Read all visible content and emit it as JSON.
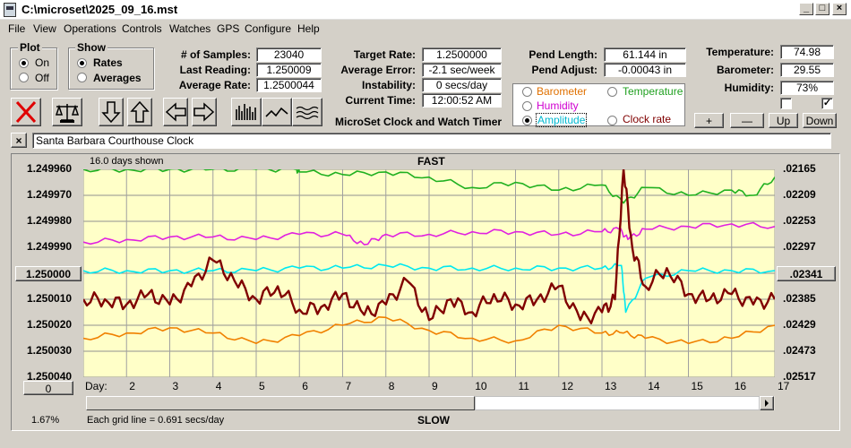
{
  "window": {
    "title": "C:\\microset\\2025_09_16.mst",
    "min_glyph": "_",
    "max_glyph": "□",
    "close_glyph": "×"
  },
  "menu": [
    "File",
    "View",
    "Operations",
    "Controls",
    "Watches",
    "GPS",
    "Configure",
    "Help"
  ],
  "plot_group": {
    "title": "Plot",
    "on": "On",
    "off": "Off",
    "selected": "On"
  },
  "show_group": {
    "title": "Show",
    "rates": "Rates",
    "averages": "Averages",
    "selected": "Rates"
  },
  "stats": {
    "samples_label": "# of Samples:",
    "samples": "23040",
    "last_label": "Last Reading:",
    "last": "1.250009",
    "avg_label": "Average Rate:",
    "avg": "1.2500044",
    "target_label": "Target Rate:",
    "target": "1.2500000",
    "error_label": "Average Error:",
    "error": "-2.1 sec/week",
    "instab_label": "Instability:",
    "instab": "0 secs/day",
    "time_label": "Current Time:",
    "time": "12:00:52 AM",
    "pendlen_label": "Pend Length:",
    "pendlen": "61.144 in",
    "pendadj_label": "Pend Adjust:",
    "pendadj": "-0.00043 in",
    "temp_label": "Temperature:",
    "temp": "74.98",
    "baro_label": "Barometer:",
    "baro": "29.55",
    "hum_label": "Humidity:",
    "hum": "73%"
  },
  "app_caption": "MicroSet Clock and Watch Timer",
  "channels": {
    "barometer": "Barometer",
    "temperature": "Temperature",
    "humidity": "Humidity",
    "amplitude": "Amplitude",
    "clock_rate": "Clock rate",
    "selected": "Amplitude"
  },
  "adjust_buttons": {
    "plus": "+",
    "minus": "—",
    "up": "Up",
    "down": "Down"
  },
  "checkboxes": {
    "left_checked": false,
    "right_checked": true,
    "check_glyph": "✓"
  },
  "clock_name": "Santa Barbara Courthouse Clock",
  "clear_glyph": "×",
  "chart": {
    "days_shown": "16.0 days shown",
    "fast": "FAST",
    "slow": "SLOW",
    "grid_note": "Each grid line = 0.691 secs/day",
    "percent": "1.67%",
    "day_prefix": "Day:",
    "center_left_btn": "1.250000",
    "center_right_btn": ".02341",
    "bottom_left_btn": "0"
  },
  "chart_data": {
    "type": "line",
    "x_label": "Day:",
    "x_ticks": [
      "2",
      "3",
      "4",
      "5",
      "6",
      "7",
      "8",
      "9",
      "10",
      "11",
      "12",
      "13",
      "14",
      "15",
      "16",
      "17"
    ],
    "xlim": [
      1,
      17
    ],
    "left_axis_ticks": [
      "1.249960",
      "1.249970",
      "1.249980",
      "1.249990",
      "1.250000",
      "1.250010",
      "1.250020",
      "1.250030",
      "1.250040"
    ],
    "right_axis_ticks": [
      ".02165",
      ".02209",
      ".02253",
      ".02297",
      ".02341",
      ".02385",
      ".02429",
      ".02473",
      ".02517"
    ],
    "left_ylim": [
      1.24996,
      1.25004
    ],
    "right_ylim": [
      0.02165,
      0.02517
    ],
    "grid": true,
    "background": "#ffffc8",
    "series": [
      {
        "name": "Temperature",
        "color": "#20b020",
        "x": [
          1,
          2,
          3,
          4,
          5,
          5.9,
          6,
          7,
          8,
          9,
          10,
          11,
          12,
          13,
          13.5,
          14,
          15,
          16,
          16.5,
          17
        ],
        "y": [
          1.24996,
          1.24996,
          1.24996,
          1.24996,
          1.24996,
          1.24996,
          1.249961,
          1.249962,
          1.249961,
          1.249963,
          1.249967,
          1.249965,
          1.249968,
          1.249966,
          1.249973,
          1.249967,
          1.24997,
          1.249968,
          1.24997,
          1.249963
        ]
      },
      {
        "name": "Humidity",
        "color": "#e020e0",
        "x": [
          1,
          2,
          3,
          4,
          5,
          6,
          7,
          7.5,
          8,
          9,
          10,
          11,
          12,
          13,
          13.4,
          13.6,
          14,
          15,
          16,
          17
        ],
        "y": [
          1.249988,
          1.249987,
          1.249986,
          1.249986,
          1.249987,
          1.249985,
          1.249985,
          1.249989,
          1.249985,
          1.249985,
          1.249984,
          1.249984,
          1.249985,
          1.249984,
          1.249983,
          1.249987,
          1.249983,
          1.249982,
          1.249981,
          1.249982
        ]
      },
      {
        "name": "Barometer",
        "color": "#00e8f0",
        "x": [
          1,
          2,
          3,
          4,
          5,
          6,
          7,
          8,
          9,
          10,
          11,
          12,
          13,
          13.45,
          13.55,
          14,
          15,
          16,
          17
        ],
        "y": [
          1.249999,
          1.249999,
          1.249999,
          1.249999,
          1.249999,
          1.249998,
          1.249998,
          1.249997,
          1.249998,
          1.249998,
          1.249998,
          1.249998,
          1.249998,
          1.249997,
          1.250015,
          1.250002,
          1.249999,
          1.249999,
          1.249999
        ]
      },
      {
        "name": "Clock rate",
        "color": "#f08000",
        "x": [
          1,
          2,
          3,
          4,
          5,
          6,
          7,
          8,
          9,
          10,
          11,
          12,
          13,
          13.5,
          14,
          15,
          16,
          17
        ],
        "y": [
          1.250025,
          1.250023,
          1.250021,
          1.250023,
          1.250027,
          1.250024,
          1.25002,
          1.250017,
          1.250022,
          1.250025,
          1.250026,
          1.25002,
          1.250023,
          1.250023,
          1.250025,
          1.250027,
          1.250025,
          1.25002
        ]
      },
      {
        "name": "Amplitude",
        "color": "#800000",
        "x": [
          1,
          1.5,
          2,
          2.5,
          3,
          3.5,
          4,
          4.5,
          5,
          5.5,
          6,
          6.5,
          7,
          7.5,
          8,
          8.5,
          9,
          9.5,
          10,
          10.5,
          11,
          11.5,
          12,
          12.5,
          13,
          13.3,
          13.5,
          13.7,
          14,
          14.5,
          15,
          15.5,
          16,
          16.5,
          17
        ],
        "y": [
          1.25001,
          1.25001,
          1.250012,
          1.250008,
          1.250012,
          1.250005,
          1.249995,
          1.250003,
          1.25001,
          1.250005,
          1.250014,
          1.250013,
          1.250008,
          1.250016,
          1.250012,
          1.250003,
          1.250018,
          1.25001,
          1.250015,
          1.250008,
          1.250012,
          1.25001,
          1.250005,
          1.250018,
          1.250015,
          1.25001,
          1.24996,
          1.24999,
          1.250005,
          1.249998,
          1.250008,
          1.25001,
          1.250008,
          1.250012,
          1.25001
        ]
      }
    ]
  }
}
